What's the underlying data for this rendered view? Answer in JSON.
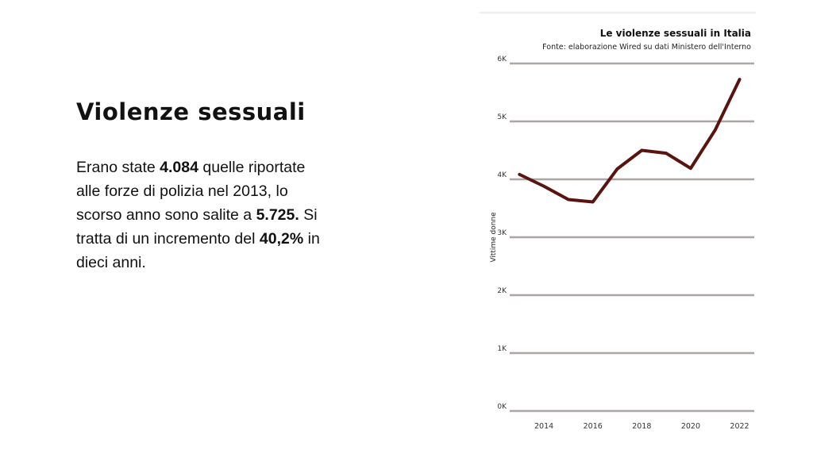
{
  "slide": {
    "title": "Violenze sessuali",
    "paragraph": {
      "p1": "Erano state ",
      "b1": "4.084",
      "p2": " quelle riportate alle forze di polizia nel 2013, lo scorso anno sono salite a ",
      "b2": "5.725.",
      "p3": " Si tratta di un incremento del ",
      "b3": "40,2%",
      "p4": " in dieci anni."
    }
  },
  "chart_data": {
    "type": "line",
    "title": "Le violenze sessuali in Italia",
    "subtitle": "Fonte: elaborazione Wired su dati Ministero dell'Interno",
    "ylabel": "Vittime donne",
    "xlabel": "",
    "x": [
      2013,
      2014,
      2015,
      2016,
      2017,
      2018,
      2019,
      2020,
      2021,
      2022
    ],
    "series": [
      {
        "values": [
          4084,
          3880,
          3650,
          3610,
          4180,
          4500,
          4450,
          4190,
          4850,
          5725
        ]
      }
    ],
    "xticks": [
      2014,
      2016,
      2018,
      2020,
      2022
    ],
    "xtick_labels": [
      "2014",
      "2016",
      "2018",
      "2020",
      "2022"
    ],
    "yticks": [
      0,
      1000,
      2000,
      3000,
      4000,
      5000,
      6000
    ],
    "ytick_labels": [
      "0K",
      "1K",
      "2K",
      "3K",
      "4K",
      "5K",
      "6K"
    ],
    "xlim": [
      2012.6,
      2022.6
    ],
    "ylim": [
      0,
      6000
    ],
    "grid": true,
    "legend": "none",
    "colors": {
      "line": "#5a1410",
      "grid": "#aca6a2",
      "top_rule": "#dddddd"
    }
  }
}
